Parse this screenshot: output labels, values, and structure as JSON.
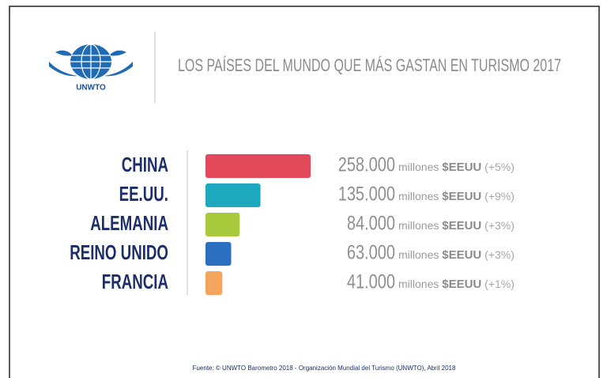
{
  "logo": "UNWTO",
  "chart_data": {
    "type": "bar",
    "orientation": "horizontal",
    "title": "LOS PAÍSES DEL MUNDO QUE MÁS GASTAN EN TURISMO 2017",
    "categories": [
      "CHINA",
      "EE.UU.",
      "ALEMANIA",
      "REINO UNIDO",
      "FRANCIA"
    ],
    "values": [
      258000,
      135000,
      84000,
      63000,
      41000
    ],
    "value_labels": [
      "258.000",
      "135.000",
      "84.000",
      "63.000",
      "41.000"
    ],
    "colors": [
      "#e2495b",
      "#1ea8bd",
      "#a9c93c",
      "#2b6fc1",
      "#f4a45c"
    ],
    "unit": "millones",
    "currency": "$EEUU",
    "changes": [
      5,
      9,
      3,
      3,
      1
    ],
    "change_labels": [
      "(+5%)",
      "(+9%)",
      "(+3%)",
      "(+3%)",
      "(+1%)"
    ],
    "source": "Fuente: © UNWTO Barometro 2018 - Organización Mundial del Turismo (UNWTO), Abril 2018"
  }
}
